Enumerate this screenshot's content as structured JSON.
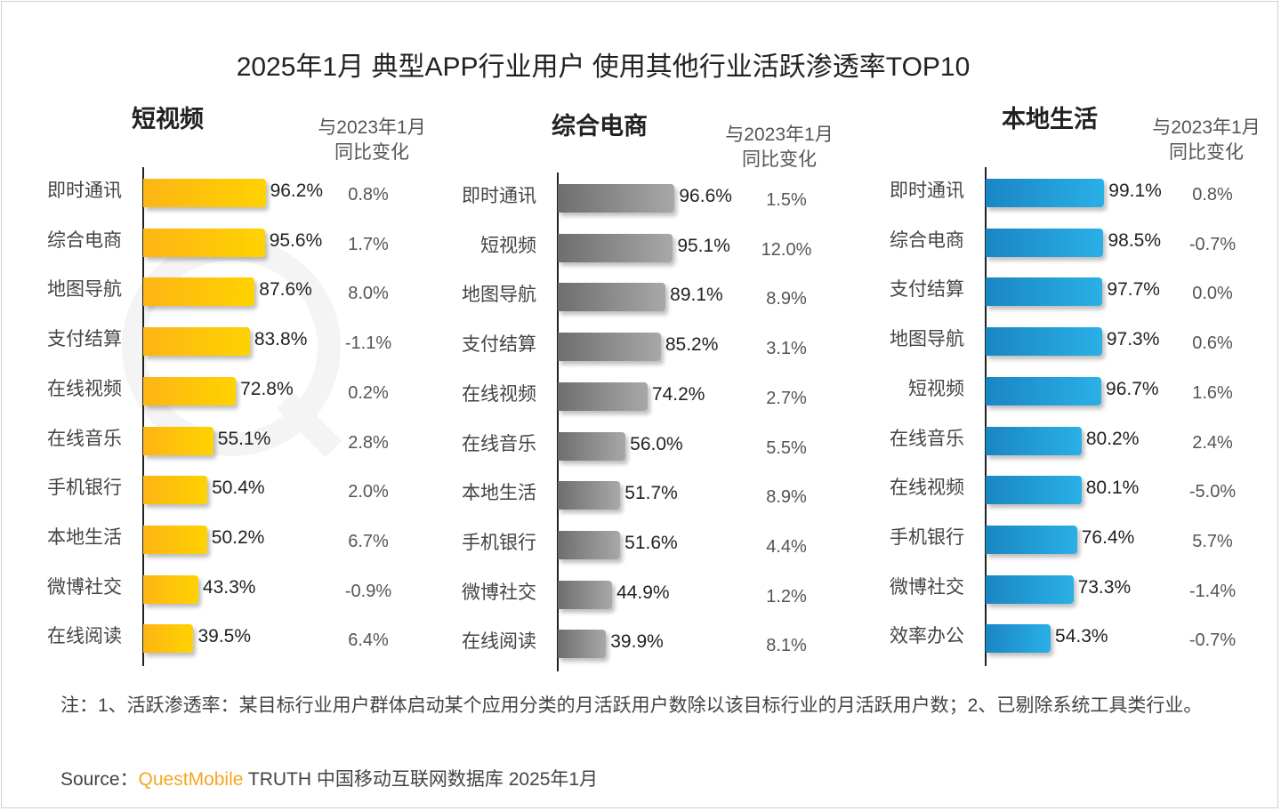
{
  "chart_data": {
    "type": "bar",
    "orientation": "horizontal",
    "title": "2025年1月 典型APP行业用户 使用其他行业活跃渗透率TOP10",
    "change_header": [
      "与2023年1月",
      "同比变化"
    ],
    "xlim": [
      0,
      100
    ],
    "unit": "%",
    "colors": {
      "短视频": "#fdb515",
      "综合电商": "#7a7a7a",
      "本地生活": "#1e94cf"
    },
    "panels": [
      {
        "name": "短视频",
        "categories": [
          "即时通讯",
          "综合电商",
          "地图导航",
          "支付结算",
          "在线视频",
          "在线音乐",
          "手机银行",
          "本地生活",
          "微博社交",
          "在线阅读"
        ],
        "values": [
          96.2,
          95.6,
          87.6,
          83.8,
          72.8,
          55.1,
          50.4,
          50.2,
          43.3,
          39.5
        ],
        "value_labels": [
          "96.2%",
          "95.6%",
          "87.6%",
          "83.8%",
          "72.8%",
          "55.1%",
          "50.4%",
          "50.2%",
          "43.3%",
          "39.5%"
        ],
        "yoy_change": [
          "0.8%",
          "1.7%",
          "8.0%",
          "-1.1%",
          "0.2%",
          "2.8%",
          "2.0%",
          "6.7%",
          "-0.9%",
          "6.4%"
        ]
      },
      {
        "name": "综合电商",
        "categories": [
          "即时通讯",
          "短视频",
          "地图导航",
          "支付结算",
          "在线视频",
          "在线音乐",
          "本地生活",
          "手机银行",
          "微博社交",
          "在线阅读"
        ],
        "values": [
          96.6,
          95.1,
          89.1,
          85.2,
          74.2,
          56.0,
          51.7,
          51.6,
          44.9,
          39.9
        ],
        "value_labels": [
          "96.6%",
          "95.1%",
          "89.1%",
          "85.2%",
          "74.2%",
          "56.0%",
          "51.7%",
          "51.6%",
          "44.9%",
          "39.9%"
        ],
        "yoy_change": [
          "1.5%",
          "12.0%",
          "8.9%",
          "3.1%",
          "2.7%",
          "5.5%",
          "8.9%",
          "4.4%",
          "1.2%",
          "8.1%"
        ]
      },
      {
        "name": "本地生活",
        "categories": [
          "即时通讯",
          "综合电商",
          "支付结算",
          "地图导航",
          "短视频",
          "在线音乐",
          "在线视频",
          "手机银行",
          "微博社交",
          "效率办公"
        ],
        "values": [
          99.1,
          98.5,
          97.7,
          97.3,
          96.7,
          80.2,
          80.1,
          76.4,
          73.3,
          54.3
        ],
        "value_labels": [
          "99.1%",
          "98.5%",
          "97.7%",
          "97.3%",
          "96.7%",
          "80.2%",
          "80.1%",
          "76.4%",
          "73.3%",
          "54.3%"
        ],
        "yoy_change": [
          "0.8%",
          "-0.7%",
          "0.0%",
          "0.6%",
          "1.6%",
          "2.4%",
          "-5.0%",
          "5.7%",
          "-1.4%",
          "-0.7%"
        ]
      }
    ],
    "grid": false,
    "legend": "none"
  },
  "watermark": "QUESTMOBILE",
  "note": "注：1、活跃渗透率：某目标行业用户群体启动某个应用分类的月活跃用户数除以该目标行业的月活跃用户数；2、已剔除系统工具类行业。",
  "source": {
    "prefix": "Source：",
    "brand": "QuestMobile",
    "rest": " TRUTH 中国移动互联网数据库 2025年1月"
  }
}
